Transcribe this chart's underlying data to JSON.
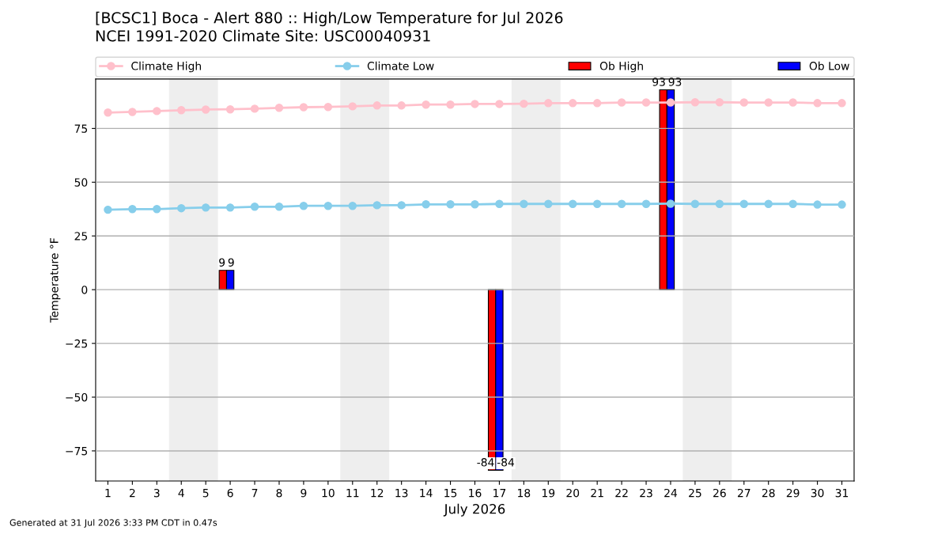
{
  "chart_data": {
    "type": "line",
    "title": "[BCSC1] Boca - Alert 880 :: High/Low Temperature for Jul 2026",
    "subtitle": "NCEI 1991-2020 Climate Site: USC00040931",
    "xlabel": "July 2026",
    "ylabel": "Temperature °F",
    "x": [
      1,
      2,
      3,
      4,
      5,
      6,
      7,
      8,
      9,
      10,
      11,
      12,
      13,
      14,
      15,
      16,
      17,
      18,
      19,
      20,
      21,
      22,
      23,
      24,
      25,
      26,
      27,
      28,
      29,
      30,
      31
    ],
    "xlim": [
      0.5,
      31.5
    ],
    "xticks": [
      1,
      2,
      3,
      4,
      5,
      6,
      7,
      8,
      9,
      10,
      11,
      12,
      13,
      14,
      15,
      16,
      17,
      18,
      19,
      20,
      21,
      22,
      23,
      24,
      25,
      26,
      27,
      28,
      29,
      30,
      31
    ],
    "ylim": [
      -89,
      98
    ],
    "yticks": [
      {
        "value": -75,
        "label": "−75"
      },
      {
        "value": -50,
        "label": "−50"
      },
      {
        "value": -25,
        "label": "−25"
      },
      0,
      25,
      50,
      75
    ],
    "grid": "y",
    "legend": "top",
    "marker": "circle",
    "line_style": "solid",
    "series": [
      {
        "name": "Climate High",
        "color": "#ffc0cb",
        "values": [
          82.4,
          82.7,
          83.1,
          83.5,
          83.8,
          83.9,
          84.2,
          84.6,
          84.9,
          85.0,
          85.3,
          85.7,
          85.7,
          86.1,
          86.1,
          86.4,
          86.4,
          86.5,
          86.8,
          86.8,
          86.8,
          87.1,
          87.1,
          87.1,
          87.2,
          87.2,
          87.1,
          87.1,
          87.1,
          86.8,
          86.8
        ]
      },
      {
        "name": "Climate Low",
        "color": "#87ceeb",
        "values": [
          37.2,
          37.5,
          37.5,
          37.9,
          38.2,
          38.2,
          38.6,
          38.6,
          39.0,
          39.0,
          39.0,
          39.3,
          39.3,
          39.7,
          39.7,
          39.7,
          39.9,
          39.9,
          39.9,
          39.9,
          39.9,
          39.9,
          39.9,
          40.0,
          39.9,
          39.9,
          39.9,
          39.9,
          39.9,
          39.6,
          39.6
        ]
      },
      {
        "name": "Ob High",
        "type": "bar",
        "color": "#ff0000",
        "values": [
          null,
          null,
          null,
          null,
          null,
          9,
          null,
          null,
          null,
          null,
          null,
          null,
          null,
          null,
          null,
          null,
          -84,
          null,
          null,
          null,
          null,
          null,
          null,
          93,
          null,
          null,
          null,
          null,
          null,
          null,
          null
        ],
        "value_labels": [
          null,
          null,
          null,
          null,
          null,
          "9",
          null,
          null,
          null,
          null,
          null,
          null,
          null,
          null,
          null,
          null,
          "-84",
          null,
          null,
          null,
          null,
          null,
          null,
          "93",
          null,
          null,
          null,
          null,
          null,
          null,
          null
        ]
      },
      {
        "name": "Ob Low",
        "type": "bar",
        "color": "#0000ff",
        "values": [
          null,
          null,
          null,
          null,
          null,
          9,
          null,
          null,
          null,
          null,
          null,
          null,
          null,
          null,
          null,
          null,
          -84,
          null,
          null,
          null,
          null,
          null,
          null,
          93,
          null,
          null,
          null,
          null,
          null,
          null,
          null
        ],
        "value_labels": [
          null,
          null,
          null,
          null,
          null,
          "9",
          null,
          null,
          null,
          null,
          null,
          null,
          null,
          null,
          null,
          null,
          "-84",
          null,
          null,
          null,
          null,
          null,
          null,
          "93",
          null,
          null,
          null,
          null,
          null,
          null,
          null
        ]
      }
    ],
    "bands": [
      {
        "axis": "x",
        "from": 3.5,
        "to": 5.5,
        "color": "#eeeeee"
      },
      {
        "axis": "x",
        "from": 10.5,
        "to": 12.5,
        "color": "#eeeeee"
      },
      {
        "axis": "x",
        "from": 17.5,
        "to": 19.5,
        "color": "#eeeeee"
      },
      {
        "axis": "x",
        "from": 24.5,
        "to": 26.5,
        "color": "#eeeeee"
      }
    ],
    "annotations": [
      "Generated at 31 Jul 2026 3:33 PM CDT in 0.47s"
    ]
  }
}
